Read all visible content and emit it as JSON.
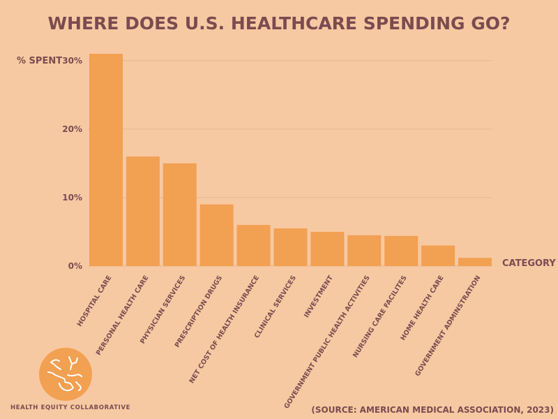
{
  "chart_data": {
    "type": "bar",
    "title": "WHERE DOES U.S. HEALTHCARE SPENDING GO?",
    "ylabel": "% SPENT",
    "xlabel": "CATEGORY",
    "yticks": [
      "0%",
      "10%",
      "20%",
      "30%"
    ],
    "ylim": [
      0,
      31
    ],
    "categories": [
      "HOSPITAL CARE",
      "PERSONAL HEALTH CARE",
      "PHYSICIAN SERVICES",
      "PRESCRIPTION DRUGS",
      "NET COST OF HEALTH INSURANCE",
      "CLINICAL SERVICES",
      "INVESTMENT",
      "GOVERNMENT PUBLIC HEALTH ACTIVITIES",
      "NURSING CARE FACILITES",
      "HOME HEALTH CARE",
      "GOVERNMENT ADMINSTRATION"
    ],
    "values": [
      31,
      16,
      15,
      9,
      6,
      5.5,
      5,
      4.5,
      4.4,
      3,
      1.2
    ],
    "grid": true,
    "colors": {
      "bar": "#f2a052",
      "background": "#f7c9a2",
      "text": "#7a4b4f"
    }
  },
  "footer": {
    "organization": "HEALTH EQUITY COLLABORATIVE",
    "source": "(SOURCE: AMERICAN MEDICAL ASSOCIATION, 2023)",
    "logo_icon": "helping-hands-icon"
  }
}
